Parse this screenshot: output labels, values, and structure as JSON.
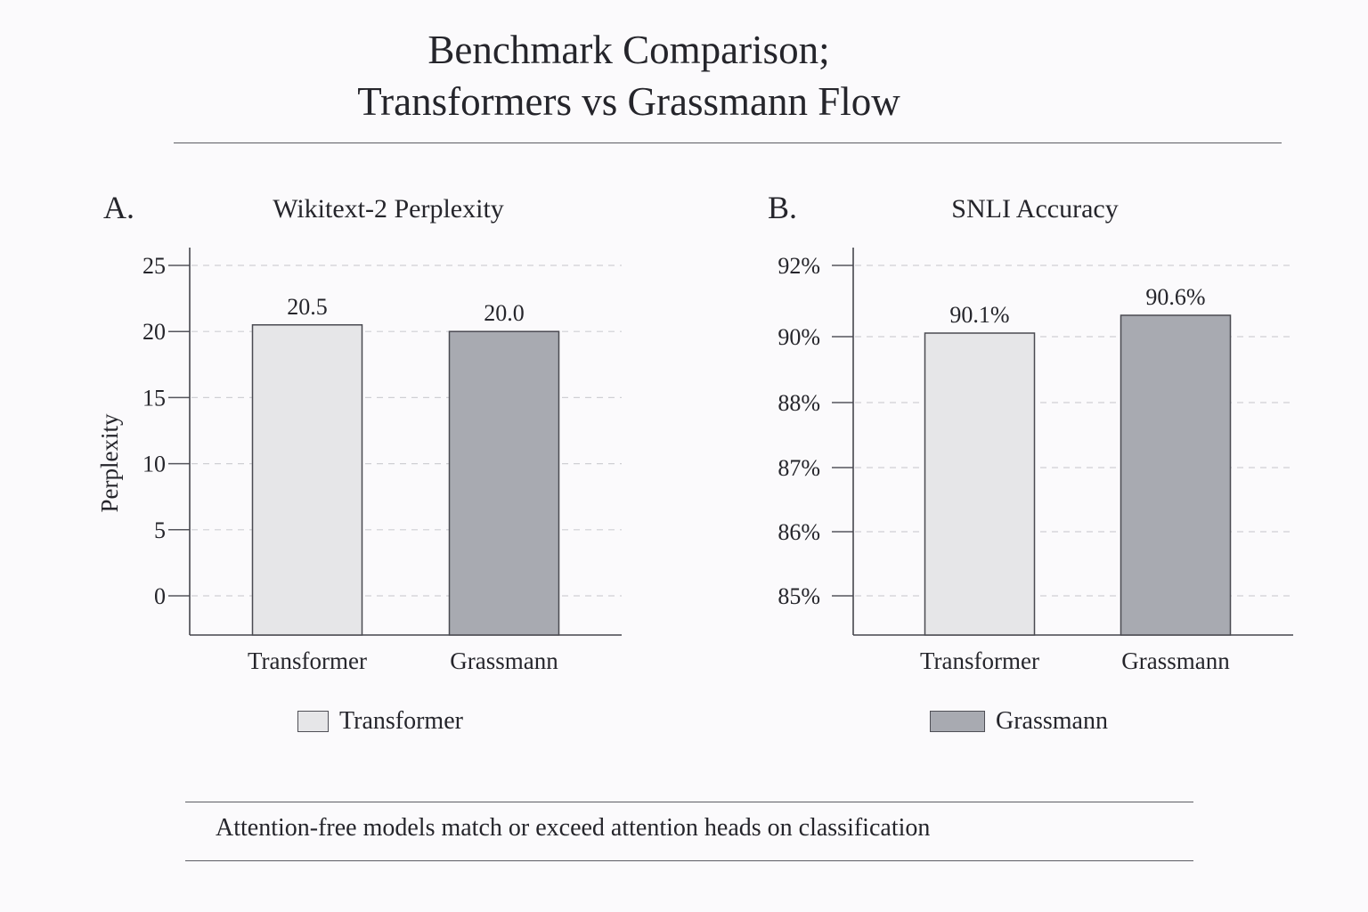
{
  "header": {
    "title_line1": "Benchmark Comparison;",
    "title_line2": "Transformers vs Grassmann Flow"
  },
  "panels": [
    {
      "letter": "A.",
      "title": "Wikitext-2 Perplexity"
    },
    {
      "letter": "B.",
      "title": "SNLI Accuracy"
    }
  ],
  "chart_data": [
    {
      "type": "bar",
      "title": "Wikitext-2 Perplexity",
      "ylabel": "Perplexity",
      "xlabel": "",
      "categories": [
        "Transformer",
        "Grassmann"
      ],
      "values": [
        20.5,
        20.0
      ],
      "value_labels": [
        "20.5",
        "20.0"
      ],
      "yticks": [
        0,
        5,
        10,
        15,
        20,
        25
      ],
      "ytick_labels": [
        "0",
        "5",
        "10",
        "15",
        "20",
        "25"
      ],
      "ylim": [
        -3,
        26
      ],
      "grid": "dashed horizontal",
      "colors": [
        "#e6e6e8",
        "#a8aab1"
      ],
      "legend": {
        "label": "Transformer",
        "color": "#e6e6e8",
        "placement": "bottom-center"
      }
    },
    {
      "type": "bar",
      "title": "SNLI Accuracy",
      "ylabel": "",
      "xlabel": "",
      "categories": [
        "Transformer",
        "Grassmann"
      ],
      "values": [
        90.1,
        90.6
      ],
      "value_labels": [
        "90.1%",
        "90.6%"
      ],
      "yticks": [
        85,
        86,
        87,
        88,
        90,
        92
      ],
      "ytick_labels": [
        "85%",
        "86%",
        "87%",
        "88%",
        "90%",
        "92%"
      ],
      "grid": "dashed horizontal",
      "colors": [
        "#e6e6e8",
        "#a8aab1"
      ],
      "legend": {
        "label": "Grassmann",
        "color": "#a8aab1",
        "placement": "bottom-center"
      }
    }
  ],
  "footer": {
    "note": "Attention-free models match or exceed attention heads on classification"
  }
}
